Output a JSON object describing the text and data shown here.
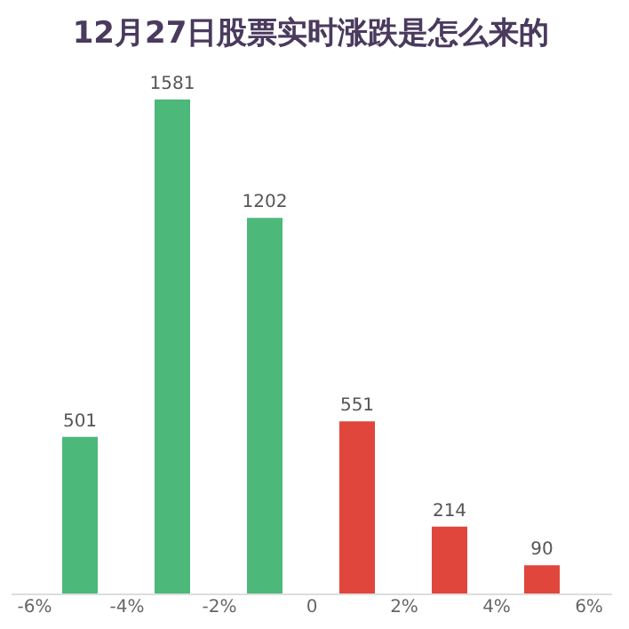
{
  "chart_data": {
    "type": "bar",
    "title": "12月27日股票实时涨跌是怎么来的",
    "x": [
      -5,
      -3,
      -1,
      1,
      3,
      5
    ],
    "values": [
      501,
      1581,
      1202,
      551,
      214,
      90
    ],
    "colors": [
      "#4cb87a",
      "#4cb87a",
      "#4cb87a",
      "#e0463c",
      "#e0463c",
      "#e0463c"
    ],
    "xlim": [
      -6.5,
      6.5
    ],
    "xticks": [
      {
        "value": -6,
        "label": "-6%"
      },
      {
        "value": -4,
        "label": "-4%"
      },
      {
        "value": -2,
        "label": "-2%"
      },
      0,
      {
        "value": 2,
        "label": "2%"
      },
      {
        "value": 4,
        "label": "4%"
      },
      {
        "value": 6,
        "label": "6%"
      }
    ],
    "data_labels": true,
    "tick_labels": "x"
  }
}
